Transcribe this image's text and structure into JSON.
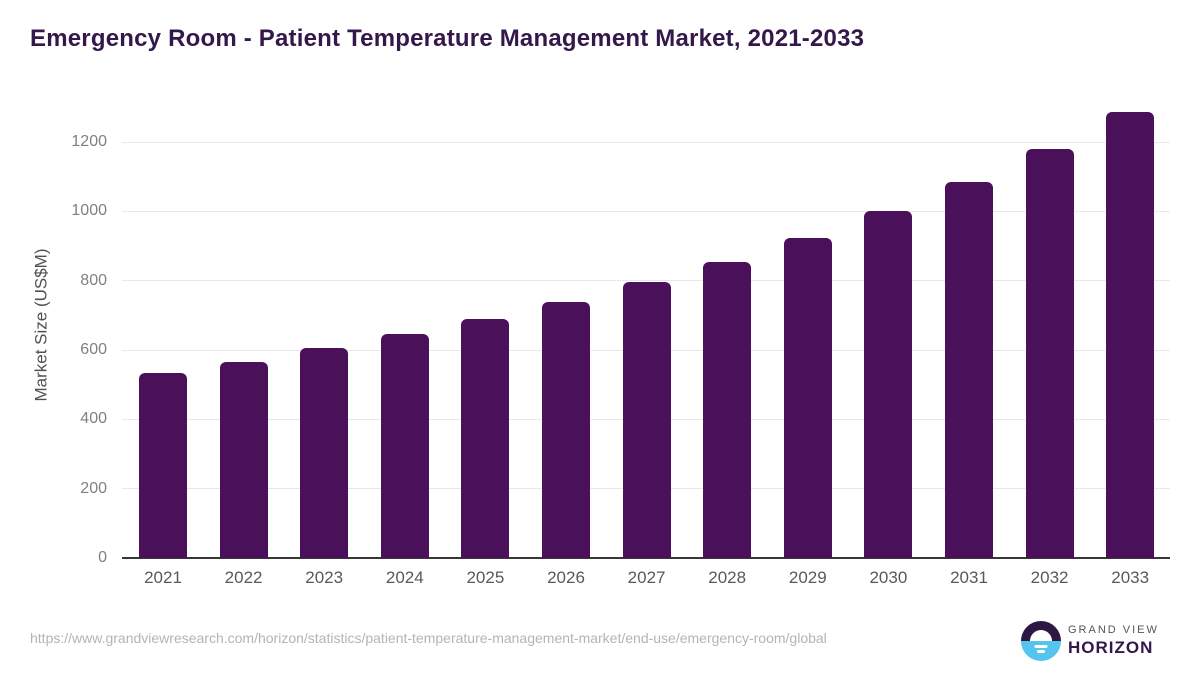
{
  "header": {
    "title": "Emergency Room - Patient Temperature Management Market, 2021-2033"
  },
  "chart_data": {
    "type": "bar",
    "title": "Emergency Room - Patient Temperature Management Market, 2021-2033",
    "categories": [
      "2021",
      "2022",
      "2023",
      "2024",
      "2025",
      "2026",
      "2027",
      "2028",
      "2029",
      "2030",
      "2031",
      "2032",
      "2033"
    ],
    "values": [
      535,
      566,
      605,
      645,
      691,
      740,
      795,
      855,
      922,
      1001,
      1085,
      1179,
      1286
    ],
    "xlabel": "",
    "ylabel": "Market Size (US$M)",
    "ylim": [
      0,
      1300
    ],
    "yticks": [
      0,
      200,
      400,
      600,
      800,
      1000,
      1200
    ],
    "grid": true,
    "legend": false,
    "bar_color": "#4a115a"
  },
  "footer": {
    "source_url": "https://www.grandviewresearch.com/horizon/statistics/patient-temperature-management-market/end-use/emergency-room/global",
    "logo": {
      "line1": "GRAND VIEW",
      "line2": "HORIZON"
    }
  },
  "colors": {
    "title": "#35184a",
    "bar": "#4a115a",
    "gridline": "#e8e8ea",
    "axis_line": "#363636",
    "y_tick_label": "#7f8084",
    "x_tick_label": "#58595b",
    "source_url": "#b4b4b6",
    "logo_purple": "#2d1844",
    "logo_blue": "#55c4ee"
  }
}
